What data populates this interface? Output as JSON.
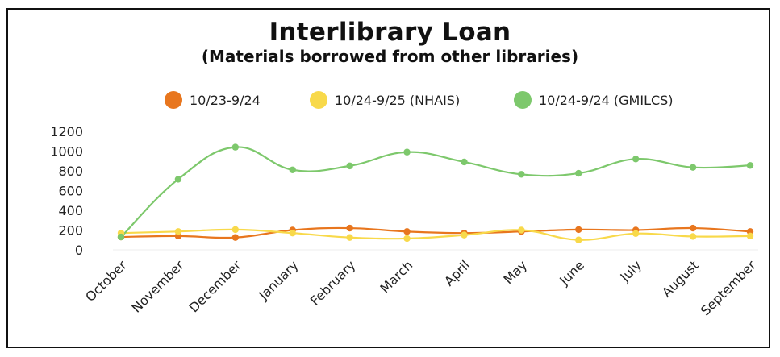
{
  "chart_data": {
    "type": "line",
    "title": "Interlibrary Loan",
    "subtitle": "(Materials borrowed from other libraries)",
    "categories": [
      "October",
      "November",
      "December",
      "January",
      "February",
      "March",
      "April",
      "May",
      "June",
      "July",
      "August",
      "September"
    ],
    "series": [
      {
        "name": "10/23-9/24",
        "color": "#E8761E",
        "values": [
          130,
          140,
          125,
          200,
          220,
          185,
          170,
          185,
          205,
          200,
          220,
          185
        ]
      },
      {
        "name": "10/24-9/25 (NHAIS)",
        "color": "#F8D94A",
        "values": [
          170,
          185,
          205,
          170,
          125,
          115,
          150,
          200,
          100,
          165,
          135,
          140
        ]
      },
      {
        "name": "10/24-9/24 (GMILCS)",
        "color": "#7DC86C",
        "values": [
          130,
          715,
          1040,
          810,
          850,
          990,
          890,
          765,
          775,
          920,
          835,
          855
        ]
      }
    ],
    "yticks": [
      0,
      200,
      400,
      600,
      800,
      1000,
      1200
    ],
    "ylim": [
      0,
      1200
    ],
    "xlabel": "",
    "ylabel": "",
    "grid": false,
    "legend_position": "top",
    "smooth": true
  }
}
